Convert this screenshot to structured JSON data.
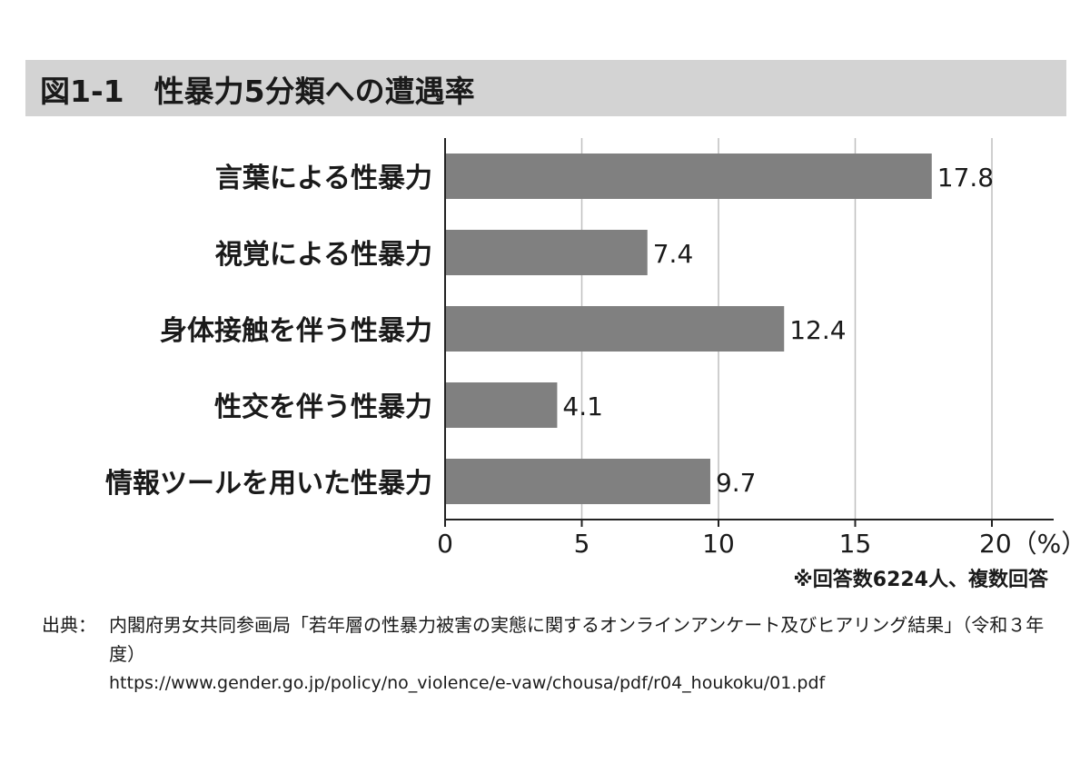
{
  "title": "図1-1　性暴力5分類への遭遇率",
  "chart_data": {
    "type": "bar",
    "orientation": "horizontal",
    "categories": [
      "言葉による性暴力",
      "視覚による性暴力",
      "身体接触を伴う性暴力",
      "性交を伴う性暴力",
      "情報ツールを用いた性暴力"
    ],
    "values": [
      17.8,
      7.4,
      12.4,
      4.1,
      9.7
    ],
    "value_labels": [
      "17.8",
      "7.4",
      "12.4",
      "4.1",
      "9.7"
    ],
    "xlim": [
      0,
      20
    ],
    "xticks": [
      0,
      5,
      10,
      15,
      20
    ],
    "xtick_labels": [
      "0",
      "5",
      "10",
      "15",
      "20（%）"
    ],
    "grid": true,
    "bar_color": "#808080",
    "grid_color": "#bfbfbf"
  },
  "note": "※回答数6224人、複数回答",
  "source": {
    "label": "出典：",
    "text": "内閣府男女共同参画局「若年層の性暴力被害の実態に関するオンラインアンケート及びヒアリング結果」（令和３年度）",
    "url": "https://www.gender.go.jp/policy/no_violence/e-vaw/chousa/pdf/r04_houkoku/01.pdf"
  }
}
